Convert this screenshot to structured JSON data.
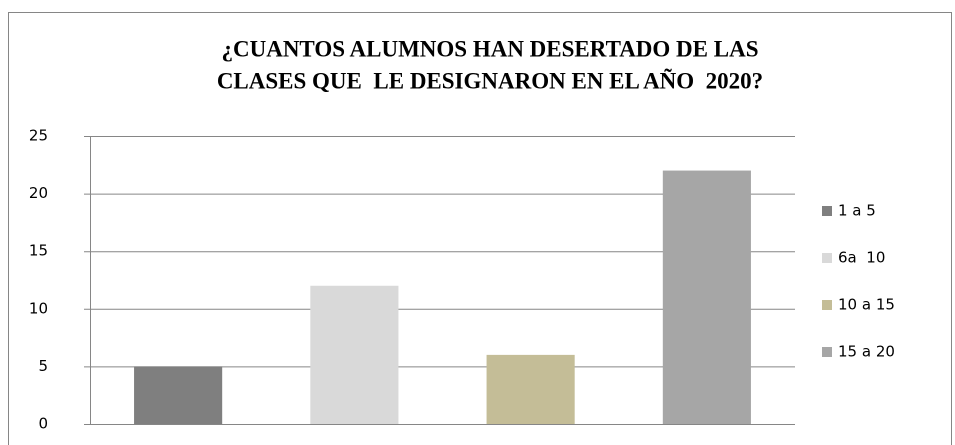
{
  "chart_data": {
    "type": "bar",
    "title": [
      "¿CUANTOS ALUMNOS HAN DESERTADO DE LAS",
      "CLASES QUE  LE DESIGNARON EN EL AÑO  2020?"
    ],
    "series": [
      {
        "name": "1 a 5",
        "color": "#7f7f7f",
        "values": [
          5
        ]
      },
      {
        "name": "6a  10",
        "color": "#d9d9d9",
        "values": [
          12
        ]
      },
      {
        "name": "10 a 15",
        "color": "#c4bd97",
        "values": [
          6
        ]
      },
      {
        "name": "15 a 20",
        "color": "#a6a6a6",
        "values": [
          22
        ]
      }
    ],
    "ylim": [
      0,
      25
    ],
    "yticks": [
      0,
      5,
      10,
      15,
      20,
      25
    ],
    "grid": true,
    "legend": "right"
  }
}
